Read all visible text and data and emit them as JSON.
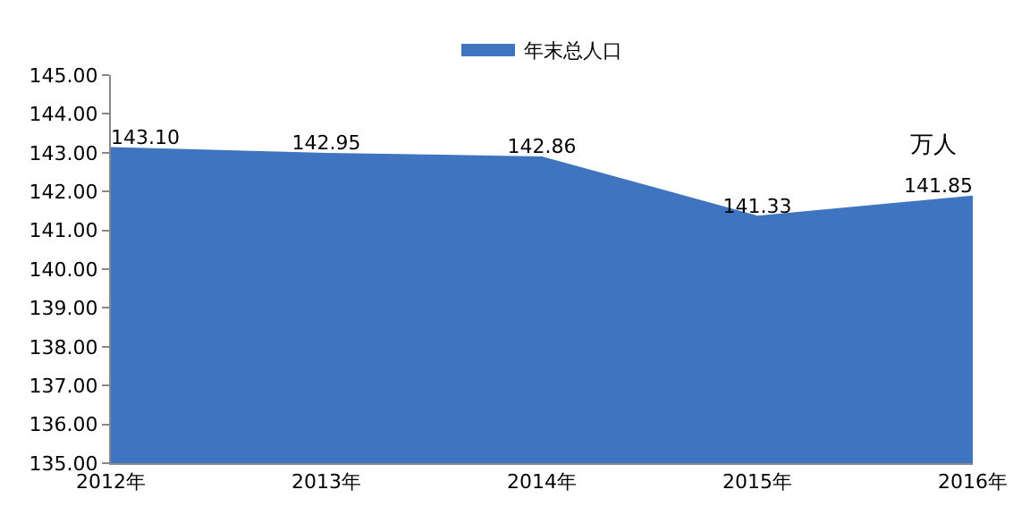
{
  "chart_data": {
    "type": "area",
    "categories": [
      "2012年",
      "2013年",
      "2014年",
      "2015年",
      "2016年"
    ],
    "series": [
      {
        "name": "年末总人口",
        "color": "#3f74c0",
        "values": [
          143.1,
          142.95,
          142.86,
          141.33,
          141.85
        ],
        "value_labels": [
          "143.10",
          "142.95",
          "142.86",
          "141.33",
          "141.85"
        ]
      }
    ],
    "ylim": [
      135,
      145
    ],
    "yticks": [
      {
        "value": 135,
        "label": "135.00"
      },
      {
        "value": 136,
        "label": "136.00"
      },
      {
        "value": 137,
        "label": "137.00"
      },
      {
        "value": 138,
        "label": "138.00"
      },
      {
        "value": 139,
        "label": "139.00"
      },
      {
        "value": 140,
        "label": "140.00"
      },
      {
        "value": 141,
        "label": "141.00"
      },
      {
        "value": 142,
        "label": "142.00"
      },
      {
        "value": 143,
        "label": "143.00"
      },
      {
        "value": 144,
        "label": "144.00"
      },
      {
        "value": 145,
        "label": "145.00"
      }
    ],
    "annotations": [
      "万人"
    ],
    "legend": "top"
  }
}
